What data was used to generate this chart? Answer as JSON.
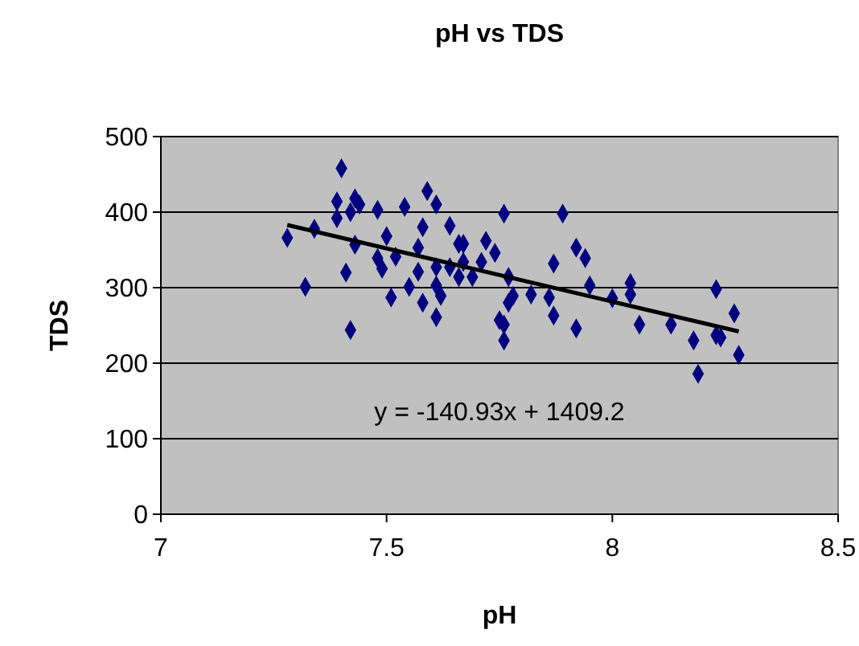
{
  "chart_data": {
    "type": "scatter",
    "title": "pH vs TDS",
    "xlabel": "pH",
    "ylabel": "TDS",
    "xlim": [
      7,
      8.5
    ],
    "xticks": [
      7,
      7.5,
      8,
      8.5
    ],
    "ylim": [
      0,
      500
    ],
    "yticks": [
      0,
      100,
      200,
      300,
      400,
      500
    ],
    "grid": "y",
    "marker": "diamond",
    "annotations": [
      "y = -140.93x + 1409.2"
    ],
    "series": [
      {
        "color": "#000080",
        "x": [
          7.28,
          7.4,
          7.34,
          7.39,
          7.43,
          7.44,
          7.42,
          7.39,
          7.48,
          7.54,
          7.59,
          7.61,
          7.43,
          7.5,
          7.58,
          7.64,
          7.76,
          7.48,
          7.49,
          7.52,
          7.57,
          7.66,
          7.67,
          7.72,
          7.74,
          7.41,
          7.32,
          7.57,
          7.61,
          7.67,
          7.71,
          7.66,
          7.69,
          7.55,
          7.61,
          7.64,
          7.51,
          7.58,
          7.62,
          7.61,
          7.42,
          7.77,
          7.78,
          7.77,
          7.75,
          7.76,
          7.76,
          7.82,
          7.89,
          7.92,
          7.94,
          7.87,
          7.86,
          7.87,
          7.92,
          7.95,
          8.0,
          8.04,
          8.04,
          8.06,
          8.13,
          8.23,
          8.27,
          8.18,
          8.23,
          8.24,
          8.28,
          8.19
        ],
        "values": [
          366,
          458,
          378,
          414,
          418,
          410,
          400,
          392,
          403,
          407,
          428,
          410,
          357,
          368,
          380,
          382,
          398,
          339,
          325,
          341,
          353,
          358,
          358,
          362,
          346,
          320,
          301,
          321,
          327,
          334,
          334,
          314,
          314,
          301,
          303,
          327,
          287,
          280,
          289,
          261,
          244,
          314,
          289,
          280,
          257,
          251,
          230,
          291,
          398,
          353,
          339,
          332,
          287,
          263,
          246,
          303,
          286,
          306,
          291,
          251,
          251,
          298,
          266,
          230,
          237,
          234,
          211,
          186
        ]
      },
      {
        "type": "line",
        "color": "#000000",
        "marker": "none",
        "x": [
          7.28,
          8.28
        ],
        "values": [
          383,
          242
        ]
      }
    ]
  }
}
